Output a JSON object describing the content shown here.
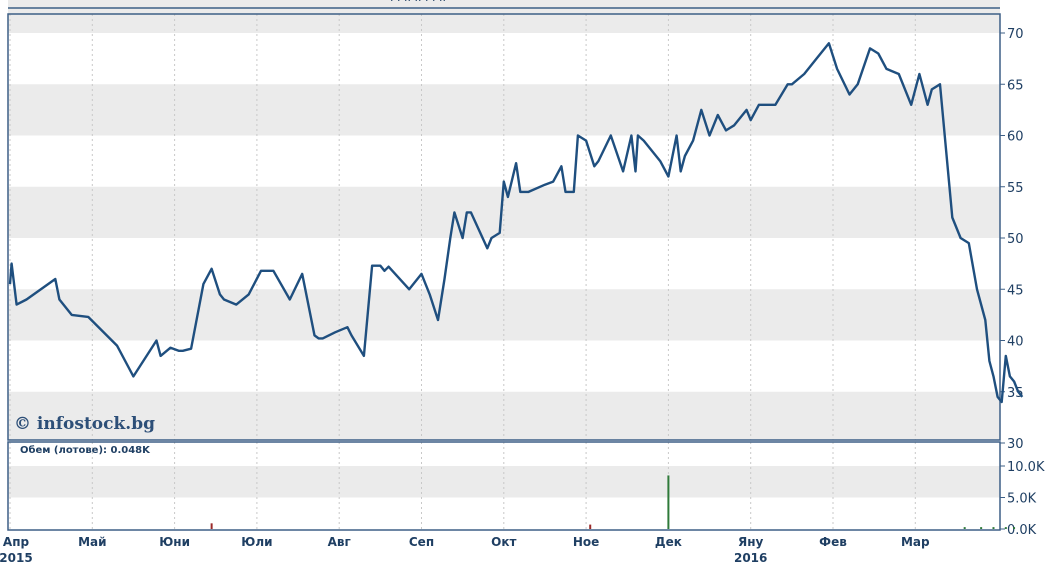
{
  "header": {
    "cropped_title": "· · ·· ·· · · ··"
  },
  "watermark": "© infostock.bg",
  "volume_label": "Обем (лотове): 0.048K",
  "colors": {
    "line": "#1f4f7f",
    "grid_band": "#ebebeb",
    "frame": "#3d5f86",
    "volume_bar": "#2f7a3a",
    "volume_bar_red": "#9b2a2a"
  },
  "chart_data": [
    {
      "type": "line",
      "title": "",
      "xlabel": "",
      "ylabel": "",
      "ylim": [
        30,
        72
      ],
      "yticks": [
        "70",
        "65",
        "60",
        "55",
        "50",
        "45",
        "40",
        "35",
        "30"
      ],
      "xticks": [
        {
          "label": "Апр",
          "sub": "2015",
          "x": 0
        },
        {
          "label": "Май",
          "x": 1
        },
        {
          "label": "Юни",
          "x": 2
        },
        {
          "label": "Юли",
          "x": 3
        },
        {
          "label": "Авг",
          "x": 4
        },
        {
          "label": "Сеп",
          "x": 5
        },
        {
          "label": "Окт",
          "x": 6
        },
        {
          "label": "Ное",
          "x": 7
        },
        {
          "label": "Дек",
          "x": 8
        },
        {
          "label": "Яну",
          "sub": "2016",
          "x": 9
        },
        {
          "label": "Фев",
          "x": 10
        },
        {
          "label": "Мар",
          "x": 11
        }
      ],
      "grid": true,
      "series": [
        {
          "x": [
            0,
            0.02,
            0.08,
            0.2,
            0.55,
            0.6,
            0.75,
            0.95,
            1.3,
            1.5,
            1.78,
            1.83,
            1.95,
            2.05,
            2.1,
            2.2,
            2.35,
            2.45,
            2.55,
            2.6,
            2.75,
            2.9,
            3.05,
            3.2,
            3.4,
            3.55,
            3.7,
            3.75,
            3.8,
            3.95,
            4.1,
            4.15,
            4.3,
            4.4,
            4.5,
            4.55,
            4.6,
            4.85,
            5.0,
            5.1,
            5.2,
            5.28,
            5.35,
            5.4,
            5.5,
            5.55,
            5.6,
            5.8,
            5.85,
            5.95,
            6.0,
            6.05,
            6.15,
            6.2,
            6.3,
            6.5,
            6.6,
            6.7,
            6.75,
            6.85,
            6.9,
            7.0,
            7.1,
            7.15,
            7.3,
            7.45,
            7.55,
            7.6,
            7.63,
            7.7,
            7.9,
            8.0,
            8.05,
            8.1,
            8.15,
            8.2,
            8.3,
            8.4,
            8.5,
            8.6,
            8.7,
            8.8,
            8.95,
            9.0,
            9.1,
            9.3,
            9.45,
            9.5,
            9.65,
            9.8,
            9.95,
            10.05,
            10.2,
            10.3,
            10.45,
            10.55,
            10.65,
            10.8,
            10.95,
            11.05,
            11.15,
            11.2,
            11.3,
            11.45,
            11.55,
            11.65,
            11.75,
            11.85,
            11.9,
            11.95,
            12.0,
            12.05,
            12.1,
            12.15,
            12.2,
            12.25,
            12.3
          ],
          "values": [
            45.5,
            47.5,
            43.5,
            44.0,
            46.0,
            44.0,
            42.5,
            42.3,
            39.5,
            36.5,
            40.0,
            38.5,
            39.3,
            39.0,
            39.0,
            39.2,
            45.5,
            47.0,
            44.5,
            44.0,
            43.5,
            44.5,
            46.8,
            46.8,
            44.0,
            46.5,
            40.5,
            40.2,
            40.2,
            40.8,
            41.3,
            40.5,
            38.5,
            47.3,
            47.3,
            46.8,
            47.2,
            45.0,
            46.5,
            44.5,
            42.0,
            46.0,
            50.0,
            52.5,
            50.0,
            52.5,
            52.5,
            49.0,
            50.0,
            50.5,
            55.5,
            54.0,
            57.3,
            54.5,
            54.5,
            55.2,
            55.5,
            57.0,
            54.5,
            54.5,
            60.0,
            59.5,
            57.0,
            57.5,
            60.0,
            56.5,
            60.0,
            56.5,
            60.0,
            59.5,
            57.5,
            56.0,
            58.0,
            60.0,
            56.5,
            58.0,
            59.5,
            62.5,
            60.0,
            62.0,
            60.5,
            61.0,
            62.5,
            61.5,
            63.0,
            63.0,
            65.0,
            65.0,
            66.0,
            67.5,
            69.0,
            66.5,
            64.0,
            65.0,
            68.5,
            68.0,
            66.5,
            66.0,
            63.0,
            66.0,
            63.0,
            64.5,
            65.0,
            52.0,
            50.0,
            49.5,
            45.0,
            42.0,
            38.0,
            36.5,
            34.5,
            34.0,
            38.5,
            36.5,
            36.0,
            35.0,
            34.5
          ]
        }
      ]
    },
    {
      "type": "bar",
      "title": "Обем (лотове): 0.048K",
      "ylim": [
        0,
        11
      ],
      "yticks": [
        "10.0K",
        "5.0K",
        "0.0K"
      ],
      "bars": [
        {
          "x": 2.45,
          "value": 0.9,
          "color": "red"
        },
        {
          "x": 7.05,
          "value": 0.7,
          "color": "red"
        },
        {
          "x": 8.0,
          "value": 8.5,
          "color": "green"
        },
        {
          "x": 11.6,
          "value": 0.3,
          "color": "green"
        },
        {
          "x": 11.8,
          "value": 0.3,
          "color": "green"
        },
        {
          "x": 11.95,
          "value": 0.3,
          "color": "green"
        },
        {
          "x": 12.1,
          "value": 0.3,
          "color": "green"
        },
        {
          "x": 12.2,
          "value": 0.3,
          "color": "green"
        }
      ]
    }
  ]
}
